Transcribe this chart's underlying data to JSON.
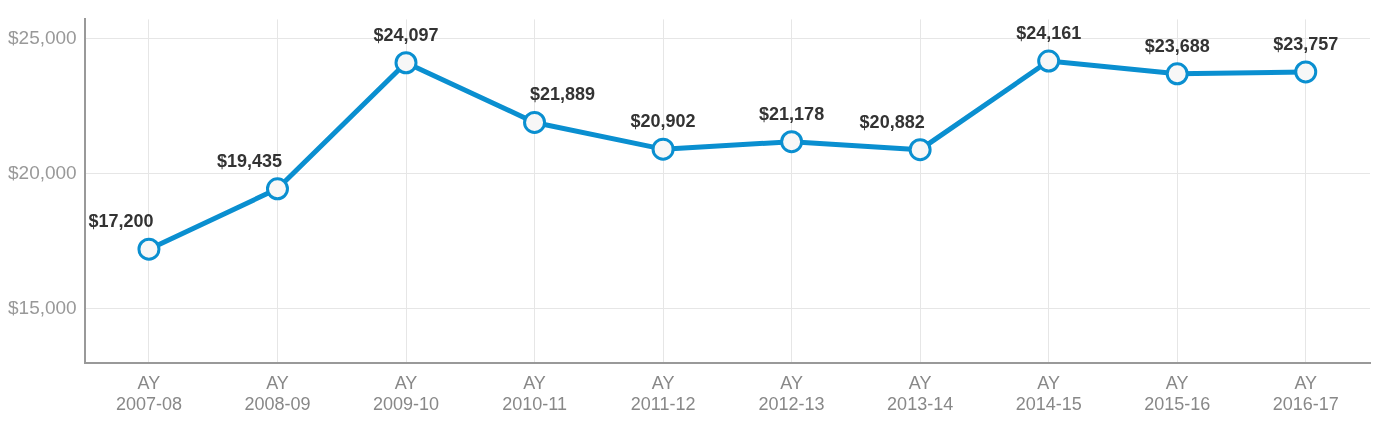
{
  "chart_data": {
    "type": "line",
    "categories": [
      "AY\n2007-08",
      "AY\n2008-09",
      "AY\n2009-10",
      "AY\n2010-11",
      "AY\n2011-12",
      "AY\n2012-13",
      "AY\n2013-14",
      "AY\n2014-15",
      "AY\n2015-16",
      "AY\n2016-17"
    ],
    "series": [
      {
        "color": "#0a8fd0",
        "values": [
          17200,
          19435,
          24097,
          21889,
          20902,
          21178,
          20882,
          24161,
          23688,
          23757
        ],
        "value_labels": [
          "$17,200",
          "$19,435",
          "$24,097",
          "$21,889",
          "$20,902",
          "$21,178",
          "$20,882",
          "$24,161",
          "$23,688",
          "$23,757"
        ]
      }
    ],
    "ylim": [
      13000,
      25700
    ],
    "yticks": [
      {
        "value": 15000,
        "label": "$15,000"
      },
      {
        "value": 20000,
        "label": "$20,000"
      },
      {
        "value": 25000,
        "label": "$25,000"
      }
    ],
    "grid": true,
    "legend": false,
    "marker": "circle",
    "line_style": "solid"
  }
}
